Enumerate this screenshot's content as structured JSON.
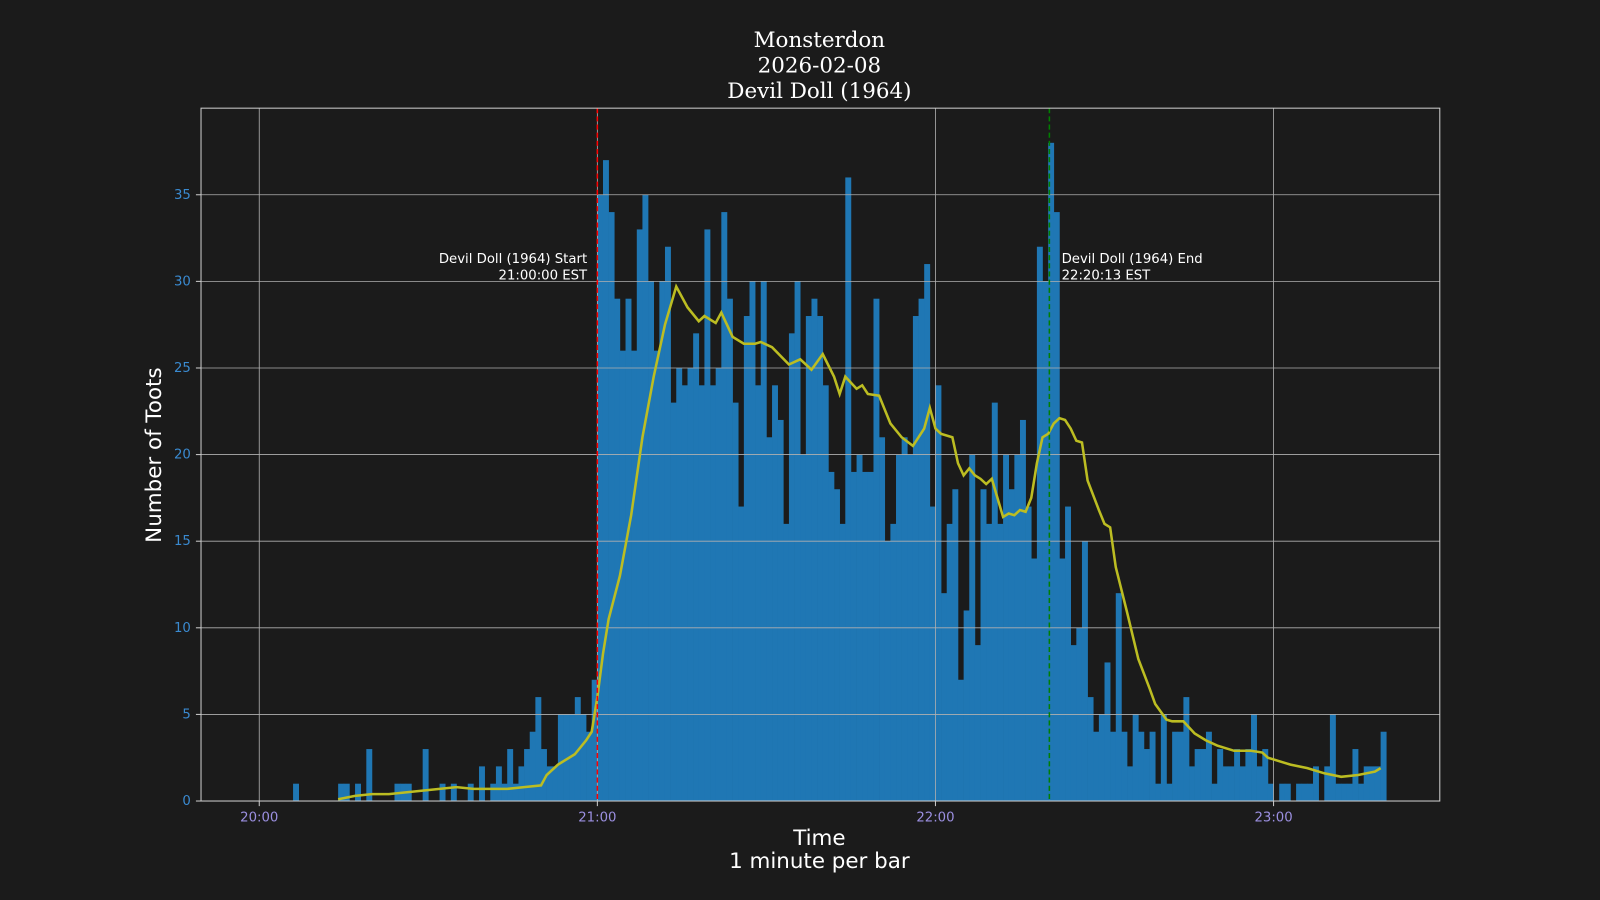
{
  "chart_data": {
    "type": "bar",
    "title": [
      "Monsterdon",
      "2026-02-08",
      "Devil Doll (1964)"
    ],
    "xlabel": [
      "Time",
      "1 minute per bar"
    ],
    "ylabel": "Number of Toots",
    "xlim": [
      "19:49:40",
      "23:29:30"
    ],
    "xticks": [
      "20:00",
      "21:00",
      "22:00",
      "23:00"
    ],
    "ylim": [
      0,
      40
    ],
    "yticks": [
      0,
      5,
      10,
      15,
      20,
      25,
      30,
      35
    ],
    "grid": true,
    "series": [
      {
        "type": "bar",
        "color": "#1f77b4",
        "x": [
          "20:06",
          "20:07",
          "20:08",
          "20:09",
          "20:10",
          "20:11",
          "20:12",
          "20:13",
          "20:14",
          "20:15",
          "20:16",
          "20:17",
          "20:18",
          "20:19",
          "20:20",
          "20:21",
          "20:22",
          "20:23",
          "20:24",
          "20:25",
          "20:26",
          "20:27",
          "20:28",
          "20:29",
          "20:30",
          "20:31",
          "20:32",
          "20:33",
          "20:34",
          "20:35",
          "20:36",
          "20:37",
          "20:38",
          "20:39",
          "20:40",
          "20:41",
          "20:42",
          "20:43",
          "20:44",
          "20:45",
          "20:46",
          "20:47",
          "20:48",
          "20:49",
          "20:50",
          "20:51",
          "20:52",
          "20:53",
          "20:54",
          "20:55",
          "20:56",
          "20:57",
          "20:58",
          "20:59",
          "21:00",
          "21:01",
          "21:02",
          "21:03",
          "21:04",
          "21:05",
          "21:06",
          "21:07",
          "21:08",
          "21:09",
          "21:10",
          "21:11",
          "21:12",
          "21:13",
          "21:14",
          "21:15",
          "21:16",
          "21:17",
          "21:18",
          "21:19",
          "21:20",
          "21:21",
          "21:22",
          "21:23",
          "21:24",
          "21:25",
          "21:26",
          "21:27",
          "21:28",
          "21:29",
          "21:30",
          "21:31",
          "21:32",
          "21:33",
          "21:34",
          "21:35",
          "21:36",
          "21:37",
          "21:38",
          "21:39",
          "21:40",
          "21:41",
          "21:42",
          "21:43",
          "21:44",
          "21:45",
          "21:46",
          "21:47",
          "21:48",
          "21:49",
          "21:50",
          "21:51",
          "21:52",
          "21:53",
          "21:54",
          "21:55",
          "21:56",
          "21:57",
          "21:58",
          "21:59",
          "22:00",
          "22:01",
          "22:02",
          "22:03",
          "22:04",
          "22:05",
          "22:06",
          "22:07",
          "22:08",
          "22:09",
          "22:10",
          "22:11",
          "22:12",
          "22:13",
          "22:14",
          "22:15",
          "22:16",
          "22:17",
          "22:18",
          "22:19",
          "22:20",
          "22:21",
          "22:22",
          "22:23",
          "22:24",
          "22:25",
          "22:26",
          "22:27",
          "22:28",
          "22:29",
          "22:30",
          "22:31",
          "22:32",
          "22:33",
          "22:34",
          "22:35",
          "22:36",
          "22:37",
          "22:38",
          "22:39",
          "22:40",
          "22:41",
          "22:42",
          "22:43",
          "22:44",
          "22:45",
          "22:46",
          "22:47",
          "22:48",
          "22:49",
          "22:50",
          "22:51",
          "22:52",
          "22:53",
          "22:54",
          "22:55",
          "22:56",
          "22:57",
          "22:58",
          "22:59",
          "23:00",
          "23:01",
          "23:02",
          "23:03",
          "23:04",
          "23:05",
          "23:06",
          "23:07",
          "23:08",
          "23:09",
          "23:10",
          "23:11",
          "23:12",
          "23:13",
          "23:14",
          "23:15",
          "23:16",
          "23:17",
          "23:18",
          "23:19"
        ],
        "values": [
          1,
          0,
          0,
          0,
          0,
          0,
          0,
          0,
          1,
          1,
          0,
          1,
          0,
          3,
          0,
          0,
          0,
          0,
          1,
          1,
          1,
          0,
          0,
          3,
          0,
          0,
          1,
          0,
          1,
          0,
          0,
          1,
          0,
          2,
          0,
          1,
          2,
          1,
          3,
          1,
          2,
          3,
          4,
          6,
          3,
          2,
          2,
          5,
          5,
          5,
          6,
          5,
          4,
          7,
          35,
          37,
          34,
          29,
          26,
          29,
          26,
          33,
          35,
          30,
          26,
          30,
          32,
          23,
          25,
          24,
          25,
          27,
          24,
          33,
          24,
          25,
          34,
          29,
          23,
          17,
          28,
          30,
          24,
          30,
          21,
          24,
          22,
          16,
          27,
          30,
          20,
          28,
          29,
          28,
          24,
          19,
          18,
          16,
          36,
          19,
          20,
          19,
          19,
          29,
          21,
          15,
          16,
          20,
          21,
          20,
          28,
          29,
          31,
          17,
          24,
          12,
          16,
          18,
          7,
          11,
          20,
          9,
          18,
          16,
          23,
          16,
          20,
          18,
          20,
          22,
          17,
          14,
          32,
          30,
          38,
          34,
          14,
          17,
          9,
          10,
          15,
          6,
          4,
          5,
          8,
          4,
          12,
          4,
          2,
          5,
          4,
          3,
          4,
          1,
          5,
          1,
          4,
          4,
          6,
          2,
          3,
          3,
          4,
          1,
          3,
          2,
          2,
          3,
          2,
          3,
          5,
          2,
          3,
          1,
          0,
          1,
          1,
          0,
          1,
          1,
          1,
          2,
          0,
          2,
          5,
          1,
          1,
          1,
          3,
          1,
          2,
          2,
          2,
          4
        ]
      },
      {
        "type": "line",
        "color": "#bcbd22",
        "x": [
          "20:14",
          "20:17",
          "20:20",
          "20:23",
          "20:26",
          "20:29",
          "20:32",
          "20:35",
          "20:38",
          "20:41",
          "20:44",
          "20:47",
          "20:50",
          "20:51",
          "20:53",
          "20:56",
          "20:58",
          "20:59",
          "21:00",
          "21:01",
          "21:02",
          "21:04",
          "21:06",
          "21:08",
          "21:10",
          "21:12",
          "21:14",
          "21:16",
          "21:18",
          "21:19",
          "21:21",
          "21:22",
          "21:24",
          "21:26",
          "21:28",
          "21:29",
          "21:31",
          "21:34",
          "21:36",
          "21:38",
          "21:40",
          "21:42",
          "21:43",
          "21:44",
          "21:46",
          "21:47",
          "21:48",
          "21:50",
          "21:52",
          "21:54",
          "21:56",
          "21:58",
          "21:59",
          "22:00",
          "22:01",
          "22:03",
          "22:04",
          "22:05",
          "22:06",
          "22:07",
          "22:08",
          "22:09",
          "22:10",
          "22:11",
          "22:12",
          "22:13",
          "22:14",
          "22:15",
          "22:16",
          "22:17",
          "22:18",
          "22:19",
          "22:20",
          "22:21",
          "22:22",
          "22:23",
          "22:24",
          "22:25",
          "22:26",
          "22:27",
          "22:29",
          "22:30",
          "22:31",
          "22:32",
          "22:34",
          "22:36",
          "22:38",
          "22:39",
          "22:41",
          "22:42",
          "22:44",
          "22:46",
          "22:48",
          "22:50",
          "22:53",
          "22:56",
          "22:58",
          "22:59",
          "23:01",
          "23:03",
          "23:06",
          "23:09",
          "23:12",
          "23:15",
          "23:18",
          "23:19"
        ],
        "values": [
          0.1,
          0.3,
          0.4,
          0.4,
          0.5,
          0.6,
          0.7,
          0.8,
          0.7,
          0.7,
          0.7,
          0.8,
          0.9,
          1.5,
          2.1,
          2.7,
          3.5,
          4,
          6,
          8.5,
          10.5,
          13,
          16.5,
          21,
          24.5,
          27.5,
          29.7,
          28.5,
          27.7,
          28,
          27.6,
          28.2,
          26.8,
          26.4,
          26.4,
          26.5,
          26.2,
          25.2,
          25.5,
          24.9,
          25.8,
          24.5,
          23.5,
          24.5,
          23.8,
          24,
          23.5,
          23.4,
          21.8,
          21,
          20.5,
          21.5,
          22.7,
          21.5,
          21.2,
          21,
          19.5,
          18.8,
          19.2,
          18.8,
          18.6,
          18.3,
          18.6,
          17.5,
          16.4,
          16.6,
          16.5,
          16.8,
          16.7,
          17.5,
          19.5,
          21,
          21.2,
          21.8,
          22.1,
          22,
          21.5,
          20.8,
          20.7,
          18.5,
          16.8,
          16,
          15.8,
          13.5,
          10.9,
          8.2,
          6.5,
          5.6,
          4.7,
          4.6,
          4.6,
          3.9,
          3.5,
          3.2,
          2.9,
          2.9,
          2.8,
          2.5,
          2.3,
          2.1,
          1.9,
          1.6,
          1.4,
          1.5,
          1.7,
          1.9
        ]
      }
    ],
    "annotations": [
      {
        "x": "21:00:00",
        "color": "#ff0000",
        "align": "right",
        "text": [
          "Devil Doll (1964) Start",
          "21:00:00 EST"
        ]
      },
      {
        "x": "22:20:13",
        "color": "#008000",
        "align": "left",
        "text": [
          "Devil Doll (1964) End",
          "22:20:13 EST"
        ]
      }
    ]
  }
}
